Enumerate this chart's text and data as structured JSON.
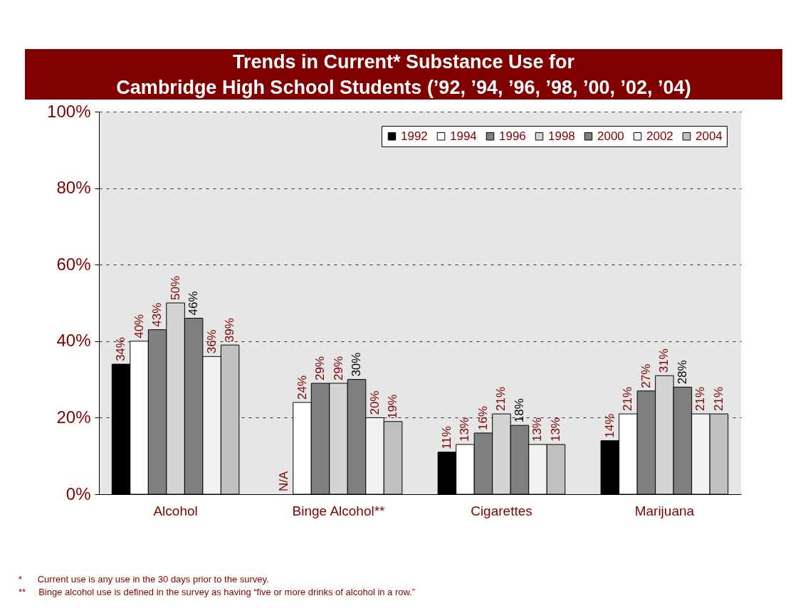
{
  "chart_data": {
    "type": "bar",
    "title": "Trends in Current* Substance Use for\nCambridge High School Students (’92, ’94, ’96, ’98, ’00, ’02, ’04)",
    "categories": [
      "Alcohol",
      "Binge Alcohol**",
      "Cigarettes",
      "Marijuana"
    ],
    "series": [
      {
        "name": "1992",
        "color": "#000000",
        "values": [
          34,
          null,
          11,
          14
        ],
        "value_labels": [
          "34%",
          "N/A",
          "11%",
          "14%"
        ]
      },
      {
        "name": "1994",
        "color": "#ffffff",
        "values": [
          40,
          24,
          13,
          21
        ],
        "value_labels": [
          "40%",
          "24%",
          "13%",
          "21%"
        ]
      },
      {
        "name": "1996",
        "color": "#808080",
        "values": [
          43,
          29,
          16,
          27
        ],
        "value_labels": [
          "43%",
          "29%",
          "16%",
          "27%"
        ]
      },
      {
        "name": "1998",
        "color": "#d4d4d4",
        "values": [
          50,
          29,
          21,
          31
        ],
        "value_labels": [
          "50%",
          "29%",
          "21%",
          "31%"
        ]
      },
      {
        "name": "2000",
        "color": "#7f7f7f",
        "values": [
          46,
          30,
          18,
          28
        ],
        "value_labels": [
          "46%",
          "30%",
          "18%",
          "28%"
        ]
      },
      {
        "name": "2002",
        "color": "#f2f2f2",
        "values": [
          36,
          20,
          13,
          21
        ],
        "value_labels": [
          "36%",
          "20%",
          "13%",
          "21%"
        ]
      },
      {
        "name": "2004",
        "color": "#c0c0c0",
        "values": [
          39,
          19,
          13,
          21
        ],
        "value_labels": [
          "39%",
          "19%",
          "13%",
          "21%"
        ]
      }
    ],
    "ylim": [
      0,
      100
    ],
    "yticks": [
      {
        "value": 0,
        "label": "0%"
      },
      {
        "value": 20,
        "label": "20%"
      },
      {
        "value": 40,
        "label": "40%"
      },
      {
        "value": 60,
        "label": "60%"
      },
      {
        "value": 80,
        "label": "80%"
      },
      {
        "value": 100,
        "label": "100%"
      }
    ],
    "grid": "y",
    "legend": "top right",
    "annotations": [
      "*      Current use is any use in the 30 days prior to the survey.",
      "**     Binge alcohol use is defined in the survey as having “five or more drinks of alcohol in a row.”"
    ]
  }
}
